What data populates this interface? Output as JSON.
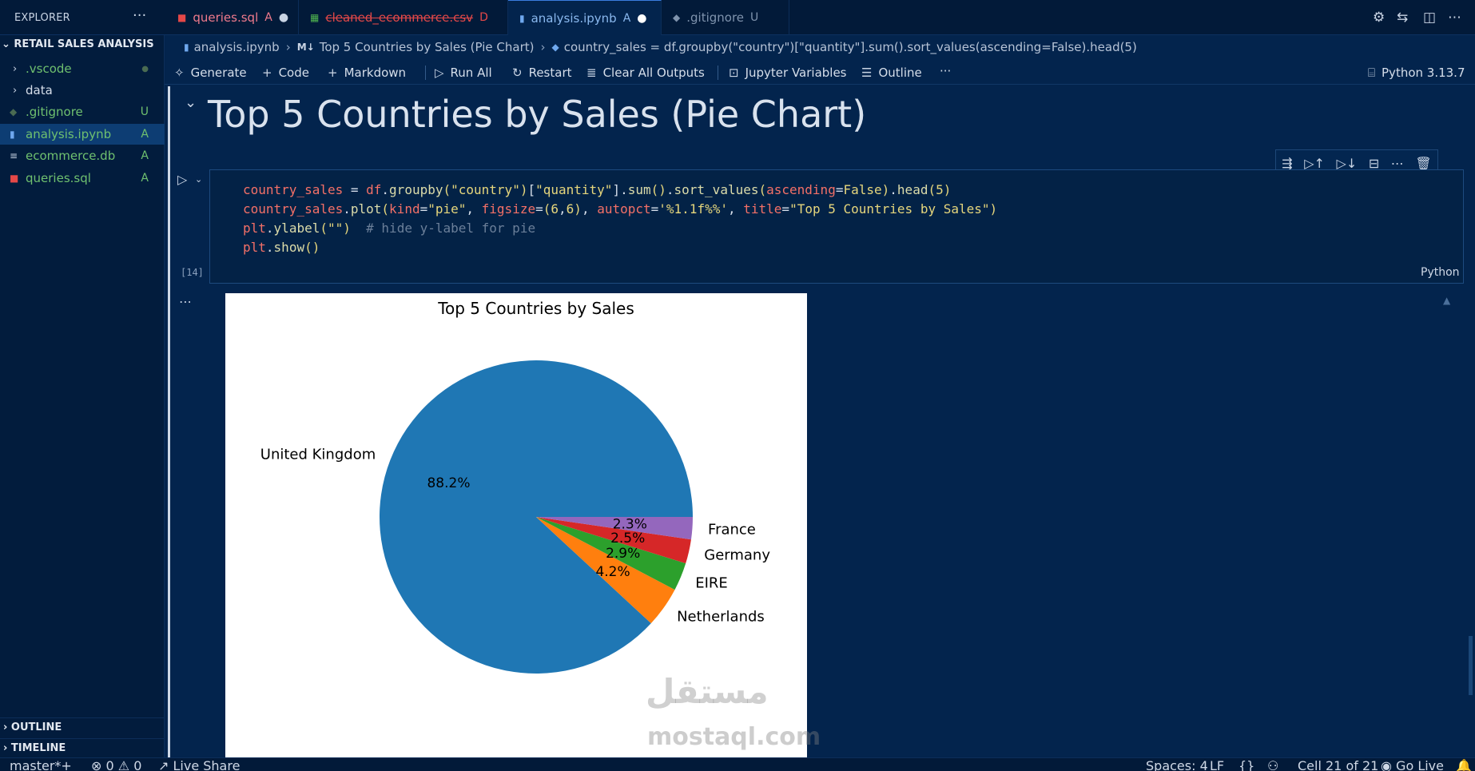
{
  "explorer": {
    "title": "EXPLORER",
    "more": "···"
  },
  "tabs": [
    {
      "label": "queries.sql",
      "status": "A",
      "dirty": "●"
    },
    {
      "label": "cleaned_ecommerce.csv",
      "status": "D"
    },
    {
      "label": "analysis.ipynb",
      "status": "A",
      "dirty": "●"
    },
    {
      "label": ".gitignore",
      "status": "U"
    }
  ],
  "sidebar": {
    "section": "RETAIL SALES ANALYSIS",
    "items": [
      {
        "label": ".vscode",
        "badge": "●"
      },
      {
        "label": "data",
        "badge": ""
      },
      {
        "label": ".gitignore",
        "badge": "U"
      },
      {
        "label": "analysis.ipynb",
        "badge": "A"
      },
      {
        "label": "ecommerce.db",
        "badge": "A"
      },
      {
        "label": "queries.sql",
        "badge": "A"
      }
    ],
    "outline": "OUTLINE",
    "timeline": "TIMELINE"
  },
  "breadcrumb": {
    "file": "analysis.ipynb",
    "heading": "Top 5 Countries by Sales (Pie Chart)",
    "cell": "country_sales = df.groupby(\"country\")[\"quantity\"].sum().sort_values(ascending=False).head(5)"
  },
  "toolbar": {
    "generate": "Generate",
    "code": "Code",
    "markdown": "Markdown",
    "run_all": "Run All",
    "restart": "Restart",
    "clear_outputs": "Clear All Outputs",
    "variables": "Jupyter Variables",
    "outline": "Outline",
    "more": "···",
    "kernel": "Python 3.13.7"
  },
  "markdown_cell": {
    "heading": "Top 5 Countries by Sales (Pie Chart)"
  },
  "code_cell": {
    "exec_count": "[14]",
    "language": "Python",
    "lines": [
      "country_sales = df.groupby(\"country\")[\"quantity\"].sum().sort_values(ascending=False).head(5)",
      "country_sales.plot(kind=\"pie\", figsize=(6,6), autopct='%1.1f%%', title=\"Top 5 Countries by Sales\")",
      "plt.ylabel(\"\")  # hide y-label for pie",
      "plt.show()"
    ]
  },
  "chart_data": {
    "type": "pie",
    "title": "Top 5 Countries by Sales",
    "categories": [
      "United Kingdom",
      "Netherlands",
      "EIRE",
      "Germany",
      "France"
    ],
    "values": [
      88.2,
      4.2,
      2.9,
      2.5,
      2.3
    ],
    "labels": [
      "88.2%",
      "4.2%",
      "2.9%",
      "2.5%",
      "2.3%"
    ],
    "colors": [
      "#1f77b4",
      "#ff7f0e",
      "#2ca02c",
      "#d62728",
      "#9467bd"
    ],
    "start_angle": 0,
    "direction": "counterclockwise"
  },
  "watermark": {
    "arabic": "مستقل",
    "latin": "mostaql.com"
  },
  "statusbar": {
    "branch": "master*+",
    "problems": "⊗ 0 ⚠ 0",
    "live_share": "Live Share",
    "spaces": "Spaces: 4",
    "eol": "LF",
    "braces": "{}",
    "cell": "Cell 21 of 21",
    "go_live": "Go Live"
  }
}
